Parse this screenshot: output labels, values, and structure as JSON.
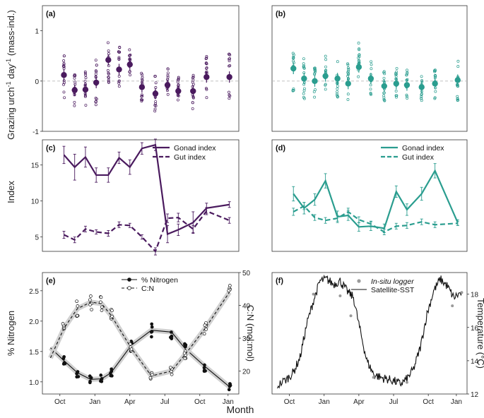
{
  "figure": {
    "xlabel": "Month",
    "ylabel_top": "Grazing urch",
    "ylabel_top_sup1": "-1",
    "ylabel_top_mid": " day",
    "ylabel_top_sup2": "-1",
    "ylabel_top_end": " (mass-ind.)",
    "ylabel_mid": "Index",
    "ylabel_e": "% Nitrogen",
    "ylabel_e_right": "C:N (mol:mol)",
    "ylabel_f_right": "Temperature (°C)",
    "month_ticks": [
      "Oct",
      "Jan",
      "Apr",
      "Jul",
      "Oct",
      "Jan"
    ],
    "colors": {
      "purple": "#4a1a5e",
      "teal": "#2a9d8f",
      "black": "#111111",
      "grey": "#9a9a9a"
    }
  },
  "chart_data": [
    {
      "panel": "(a)",
      "type": "scatter",
      "color": "#4a1a5e",
      "ylim": [
        -1,
        1.5
      ],
      "yticks": [
        "-1",
        "0",
        "1"
      ],
      "reference_line": 0,
      "x": [
        0,
        0.8,
        1.6,
        2.4,
        3.3,
        4.1,
        4.9,
        5.8,
        6.8,
        7.7,
        8.5,
        9.6,
        10.6,
        12.3
      ],
      "means": [
        0.12,
        -0.18,
        -0.17,
        -0.03,
        0.42,
        0.23,
        0.33,
        -0.12,
        -0.25,
        -0.08,
        -0.2,
        -0.2,
        0.08,
        0.08
      ],
      "spread": [
        0.45,
        0.35,
        0.4,
        0.45,
        0.45,
        0.45,
        0.35,
        0.3,
        0.35,
        0.35,
        0.3,
        0.35,
        0.45,
        0.5
      ]
    },
    {
      "panel": "(b)",
      "type": "scatter",
      "color": "#2a9d8f",
      "ylim": [
        -1,
        1.5
      ],
      "yticks": [
        "-1",
        "0",
        "1"
      ],
      "reference_line": 0,
      "x": [
        0,
        0.8,
        1.6,
        2.4,
        3.3,
        4.1,
        4.9,
        5.8,
        6.8,
        7.7,
        8.5,
        9.6,
        10.6,
        12.3
      ],
      "means": [
        0.25,
        0.05,
        0,
        0.1,
        0.05,
        -0.05,
        0.28,
        0.05,
        -0.1,
        -0.05,
        -0.08,
        -0.12,
        -0.05,
        0.02
      ],
      "spread": [
        0.5,
        0.4,
        0.35,
        0.45,
        0.45,
        0.4,
        0.5,
        0.35,
        0.3,
        0.35,
        0.3,
        0.3,
        0.3,
        0.45
      ]
    },
    {
      "panel": "(c)",
      "type": "line",
      "color": "#4a1a5e",
      "ylim": [
        3,
        18.5
      ],
      "yticks": [
        "5",
        "10",
        "15"
      ],
      "series": [
        {
          "name": "Gonad index",
          "x": [
            0,
            0.8,
            1.6,
            2.4,
            3.3,
            4.1,
            4.9,
            5.8,
            6.8,
            7.7,
            8.5,
            9.6,
            10.6,
            12.3
          ],
          "values": [
            16.4,
            14.7,
            16.1,
            13.6,
            13.6,
            16.0,
            14.7,
            17.3,
            17.8,
            5.4,
            6.0,
            7.0,
            9.0,
            9.5
          ],
          "err": [
            1.2,
            1.8,
            1.4,
            1.0,
            1.0,
            0.8,
            1.0,
            0.8,
            0.8,
            1.2,
            0.8,
            1.5,
            0.7,
            0.4
          ]
        },
        {
          "name": "Gut index",
          "x": [
            0,
            0.8,
            1.6,
            2.4,
            3.3,
            4.1,
            4.9,
            5.8,
            6.8,
            7.7,
            8.5,
            9.6,
            10.6,
            12.3
          ],
          "values": [
            5.3,
            4.6,
            6.1,
            5.7,
            5.5,
            6.7,
            6.6,
            5.0,
            3.0,
            7.6,
            7.7,
            6.1,
            8.6,
            7.3
          ],
          "err": [
            0.5,
            0.4,
            0.4,
            0.3,
            0.4,
            0.4,
            0.3,
            0.3,
            0.5,
            0.6,
            0.6,
            0.5,
            0.5,
            0.4
          ]
        }
      ]
    },
    {
      "panel": "(d)",
      "type": "line",
      "color": "#2a9d8f",
      "ylim": [
        3,
        18.5
      ],
      "yticks": [
        "5",
        "10",
        "15"
      ],
      "series": [
        {
          "name": "Gonad index",
          "x": [
            0,
            0.8,
            1.6,
            2.4,
            3.3,
            4.1,
            4.9,
            5.8,
            6.8,
            7.7,
            8.5,
            9.6,
            10.6,
            12.3
          ],
          "values": [
            11.0,
            9.0,
            10.2,
            12.8,
            7.8,
            8.0,
            6.4,
            6.5,
            6.2,
            11.3,
            8.8,
            11.0,
            14.2,
            7.0
          ],
          "err": [
            1.0,
            0.8,
            0.8,
            1.0,
            0.8,
            0.7,
            0.6,
            0.6,
            0.6,
            0.8,
            0.8,
            0.9,
            1.0,
            0.4
          ]
        },
        {
          "name": "Gut index",
          "x": [
            0,
            0.8,
            1.6,
            2.4,
            3.3,
            4.1,
            4.9,
            5.8,
            6.8,
            7.7,
            8.5,
            9.6,
            10.6,
            12.3
          ],
          "values": [
            8.5,
            9.3,
            7.7,
            7.3,
            7.6,
            8.5,
            7.4,
            6.8,
            5.7,
            6.5,
            6.6,
            7.1,
            6.7,
            6.9
          ],
          "err": [
            0.5,
            0.5,
            0.4,
            0.4,
            0.4,
            0.5,
            0.4,
            0.4,
            0.4,
            0.4,
            0.4,
            0.4,
            0.4,
            0.3
          ]
        }
      ]
    },
    {
      "panel": "(e)",
      "type": "scatter",
      "ylim_left": [
        0.8,
        2.8
      ],
      "yticks_left": [
        "1.0",
        "1.5",
        "2.0",
        "2.5"
      ],
      "ylim_right": [
        13,
        50
      ],
      "yticks_right": [
        "20",
        "30",
        "40",
        "50"
      ],
      "series": [
        {
          "name": "% Nitrogen",
          "axis": "left",
          "style": "solid",
          "x": [
            -1,
            0,
            1,
            2,
            2.8,
            3.5,
            5,
            6.5,
            8,
            9,
            10.5,
            12.3
          ],
          "values": [
            1.56,
            1.35,
            1.15,
            1.04,
            1.05,
            1.15,
            1.6,
            1.85,
            1.82,
            1.55,
            1.25,
            0.92
          ]
        },
        {
          "name": "C:N",
          "axis": "right",
          "style": "dashed",
          "x": [
            -1,
            0,
            1,
            2,
            2.8,
            3.5,
            5,
            6.5,
            8,
            9,
            10.5,
            12.3
          ],
          "values": [
            24,
            33,
            39,
            41,
            40.5,
            37,
            27,
            18.5,
            20,
            25,
            33,
            44
          ]
        }
      ]
    },
    {
      "panel": "(f)",
      "type": "line",
      "ylim": [
        12,
        19.3
      ],
      "yticks_right": [
        "12",
        "14",
        "16",
        "18"
      ],
      "series": [
        {
          "name": "Satellite-SST",
          "x": [
            -1.2,
            -0.5,
            0,
            0.5,
            1,
            1.5,
            2,
            2.5,
            3,
            3.5,
            4,
            4.5,
            5,
            5.5,
            6,
            6.5,
            7,
            7.5,
            8,
            8.5,
            9,
            9.5,
            10,
            10.5,
            11,
            11.5,
            12,
            12.6
          ],
          "values": [
            12.5,
            12.9,
            13.3,
            14.2,
            16.2,
            17.6,
            18.8,
            18.9,
            18.6,
            18.8,
            18.2,
            17.8,
            15.8,
            14.0,
            13.2,
            13.0,
            12.9,
            12.8,
            12.6,
            12.9,
            13.5,
            14.8,
            16.8,
            18.2,
            18.9,
            18.5,
            17.8,
            18.1
          ]
        },
        {
          "name": "In-situ logger",
          "x": [
            1.5,
            3.5,
            4.3,
            6,
            8.5,
            11.9,
            12.6
          ],
          "values": [
            18.0,
            17.9,
            16.7,
            13.0,
            12.7,
            17.3,
            18.1
          ]
        }
      ]
    }
  ]
}
